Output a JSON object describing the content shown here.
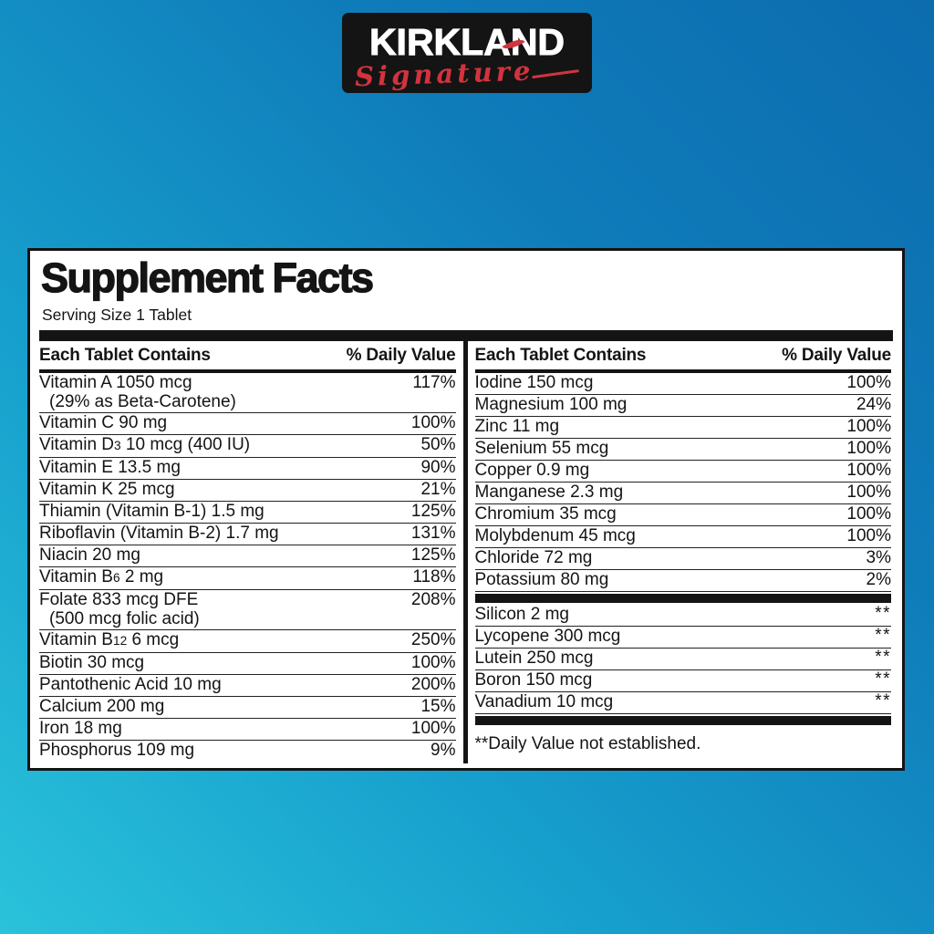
{
  "logo": {
    "brand": "KIRKLAND",
    "script": "Signature"
  },
  "panel": {
    "title": "Supplement Facts",
    "serving_size": "Serving Size 1 Tablet",
    "columns": [
      {
        "header_left": "Each Tablet Contains",
        "header_right": "% Daily Value",
        "rows": [
          {
            "label": [
              {
                "t": "Vitamin A 1050 mcg"
              }
            ],
            "label2": "(29% as Beta-Carotene)",
            "value": "117%"
          },
          {
            "label": [
              {
                "t": "Vitamin C 90 mg"
              }
            ],
            "value": "100%"
          },
          {
            "label": [
              {
                "t": "Vitamin D"
              },
              {
                "t": "3",
                "sub": true
              },
              {
                "t": " 10 mcg (400 IU)"
              }
            ],
            "value": "50%"
          },
          {
            "label": [
              {
                "t": "Vitamin E 13.5 mg"
              }
            ],
            "value": "90%"
          },
          {
            "label": [
              {
                "t": "Vitamin K 25 mcg"
              }
            ],
            "value": "21%"
          },
          {
            "label": [
              {
                "t": "Thiamin (Vitamin B-1) 1.5 mg"
              }
            ],
            "value": "125%"
          },
          {
            "label": [
              {
                "t": "Riboflavin (Vitamin B-2) 1.7 mg"
              }
            ],
            "value": "131%"
          },
          {
            "label": [
              {
                "t": "Niacin 20 mg"
              }
            ],
            "value": "125%"
          },
          {
            "label": [
              {
                "t": "Vitamin B"
              },
              {
                "t": "6",
                "sub": true
              },
              {
                "t": " 2 mg"
              }
            ],
            "value": "118%"
          },
          {
            "label": [
              {
                "t": "Folate 833 mcg DFE"
              }
            ],
            "label2": "(500 mcg folic acid)",
            "value": "208%"
          },
          {
            "label": [
              {
                "t": "Vitamin B"
              },
              {
                "t": "12",
                "sub": true
              },
              {
                "t": " 6 mcg"
              }
            ],
            "value": "250%"
          },
          {
            "label": [
              {
                "t": "Biotin 30 mcg"
              }
            ],
            "value": "100%"
          },
          {
            "label": [
              {
                "t": "Pantothenic Acid 10 mg"
              }
            ],
            "value": "200%"
          },
          {
            "label": [
              {
                "t": "Calcium 200 mg"
              }
            ],
            "value": "15%"
          },
          {
            "label": [
              {
                "t": "Iron 18 mg"
              }
            ],
            "value": "100%"
          },
          {
            "label": [
              {
                "t": "Phosphorus 109 mg"
              }
            ],
            "value": "9%"
          }
        ]
      },
      {
        "header_left": "Each Tablet Contains",
        "header_right": "% Daily Value",
        "rows": [
          {
            "label": [
              {
                "t": "Iodine 150 mcg"
              }
            ],
            "value": "100%"
          },
          {
            "label": [
              {
                "t": "Magnesium 100 mg"
              }
            ],
            "value": "24%"
          },
          {
            "label": [
              {
                "t": "Zinc 11 mg"
              }
            ],
            "value": "100%"
          },
          {
            "label": [
              {
                "t": "Selenium 55 mcg"
              }
            ],
            "value": "100%"
          },
          {
            "label": [
              {
                "t": "Copper 0.9 mg"
              }
            ],
            "value": "100%"
          },
          {
            "label": [
              {
                "t": "Manganese 2.3 mg"
              }
            ],
            "value": "100%"
          },
          {
            "label": [
              {
                "t": "Chromium 35 mcg"
              }
            ],
            "value": "100%"
          },
          {
            "label": [
              {
                "t": "Molybdenum 45 mcg"
              }
            ],
            "value": "100%"
          },
          {
            "label": [
              {
                "t": "Chloride 72 mg"
              }
            ],
            "value": "3%"
          },
          {
            "label": [
              {
                "t": "Potassium 80 mg"
              }
            ],
            "value": "2%"
          },
          {
            "type": "bar"
          },
          {
            "label": [
              {
                "t": "Silicon 2 mg"
              }
            ],
            "value": "**"
          },
          {
            "label": [
              {
                "t": "Lycopene 300 mcg"
              }
            ],
            "value": "**"
          },
          {
            "label": [
              {
                "t": "Lutein 250 mcg"
              }
            ],
            "value": "**"
          },
          {
            "label": [
              {
                "t": "Boron 150 mcg"
              }
            ],
            "value": "**"
          },
          {
            "label": [
              {
                "t": "Vanadium 10 mcg"
              }
            ],
            "value": "**"
          },
          {
            "type": "bar"
          },
          {
            "type": "footnote",
            "text": "**Daily Value not established."
          }
        ]
      }
    ]
  },
  "colors": {
    "background_gradient": [
      "#2ac2db",
      "#17a0cd",
      "#0f7cba",
      "#0c6cae"
    ],
    "panel_background": "#ffffff",
    "ink": "#141414",
    "logo_background": "#141414",
    "logo_text": "#ffffff",
    "logo_red": "#d2333e"
  }
}
